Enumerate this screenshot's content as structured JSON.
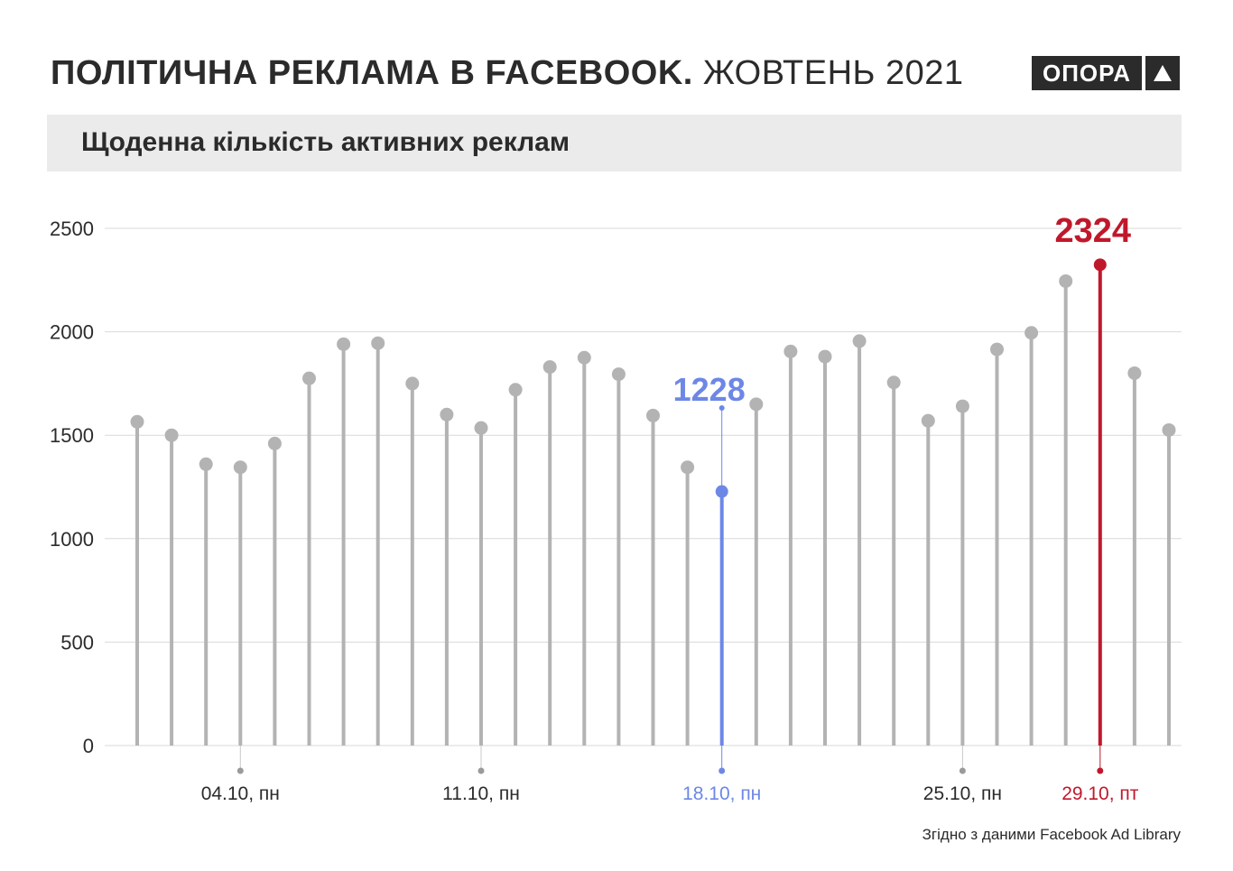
{
  "header": {
    "title_bold": "ПОЛІТИЧНА РЕКЛАМА В FACEBOOK.",
    "title_light": "ЖОВТЕНЬ 2021",
    "logo_text": "ОПОРА",
    "logo_icon": "triangle-up-icon"
  },
  "subtitle": "Щоденна кількість активних реклам",
  "source": "Згідно з даними Facebook Ad Library",
  "colors": {
    "default": "#b3b3b3",
    "highlight_low": "#6d87e6",
    "highlight_high": "#c0182b",
    "grid": "#d9d9d9",
    "text": "#2b2b2b"
  },
  "chart_data": {
    "type": "lollipop",
    "title": "Щоденна кількість активних реклам",
    "ylim": [
      0,
      2500
    ],
    "yticks": [
      0,
      500,
      1000,
      1500,
      2000,
      2500
    ],
    "grid": true,
    "x": [
      "01.10",
      "02.10",
      "03.10",
      "04.10",
      "05.10",
      "06.10",
      "07.10",
      "08.10",
      "09.10",
      "10.10",
      "11.10",
      "12.10",
      "13.10",
      "14.10",
      "15.10",
      "16.10",
      "17.10",
      "18.10",
      "19.10",
      "20.10",
      "21.10",
      "22.10",
      "23.10",
      "24.10",
      "25.10",
      "26.10",
      "27.10",
      "28.10",
      "29.10",
      "30.10",
      "31.10"
    ],
    "values": [
      1565,
      1500,
      1360,
      1345,
      1460,
      1775,
      1940,
      1945,
      1750,
      1600,
      1535,
      1720,
      1830,
      1875,
      1795,
      1595,
      1345,
      1228,
      1650,
      1905,
      1880,
      1955,
      1755,
      1570,
      1640,
      1915,
      1995,
      2245,
      2324,
      1800,
      1525
    ],
    "x_labels": [
      {
        "index": 3,
        "label": "04.10, пн"
      },
      {
        "index": 10,
        "label": "11.10, пн"
      },
      {
        "index": 17,
        "label": "18.10, пн"
      },
      {
        "index": 24,
        "label": "25.10, пн"
      },
      {
        "index": 28,
        "label": "29.10, пт"
      }
    ],
    "highlights": [
      {
        "index": 17,
        "label": "1228",
        "color_key": "highlight_low"
      },
      {
        "index": 28,
        "label": "2324",
        "color_key": "highlight_high"
      }
    ]
  }
}
